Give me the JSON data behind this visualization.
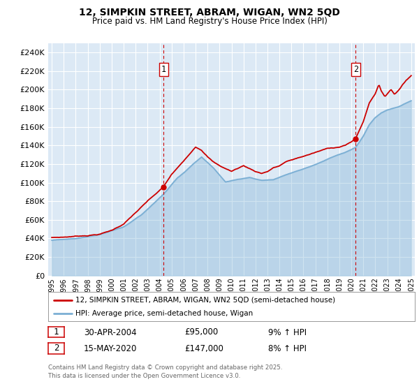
{
  "title1": "12, SIMPKIN STREET, ABRAM, WIGAN, WN2 5QD",
  "title2": "Price paid vs. HM Land Registry's House Price Index (HPI)",
  "ylabel_ticks": [
    "£0",
    "£20K",
    "£40K",
    "£60K",
    "£80K",
    "£100K",
    "£120K",
    "£140K",
    "£160K",
    "£180K",
    "£200K",
    "£220K",
    "£240K"
  ],
  "ytick_values": [
    0,
    20000,
    40000,
    60000,
    80000,
    100000,
    120000,
    140000,
    160000,
    180000,
    200000,
    220000,
    240000
  ],
  "ymax": 250000,
  "xmin_year": 1995,
  "xmax_year": 2025,
  "xtick_years": [
    1995,
    1996,
    1997,
    1998,
    1999,
    2000,
    2001,
    2002,
    2003,
    2004,
    2005,
    2006,
    2007,
    2008,
    2009,
    2010,
    2011,
    2012,
    2013,
    2014,
    2015,
    2016,
    2017,
    2018,
    2019,
    2020,
    2021,
    2022,
    2023,
    2024,
    2025
  ],
  "plot_bg_color": "#dce9f5",
  "grid_color": "#ffffff",
  "red_line_color": "#cc0000",
  "blue_line_color": "#7bafd4",
  "vline_color": "#cc0000",
  "dot_color": "#cc0000",
  "legend_label_red": "12, SIMPKIN STREET, ABRAM, WIGAN, WN2 5QD (semi-detached house)",
  "legend_label_blue": "HPI: Average price, semi-detached house, Wigan",
  "annotation1_label": "1",
  "annotation1_date": "30-APR-2004",
  "annotation1_price": "£95,000",
  "annotation1_hpi": "9% ↑ HPI",
  "annotation1_year": 2004.33,
  "annotation1_value": 95000,
  "annotation2_label": "2",
  "annotation2_date": "15-MAY-2020",
  "annotation2_price": "£147,000",
  "annotation2_hpi": "8% ↑ HPI",
  "annotation2_year": 2020.37,
  "annotation2_value": 147000,
  "footer": "Contains HM Land Registry data © Crown copyright and database right 2025.\nThis data is licensed under the Open Government Licence v3.0."
}
